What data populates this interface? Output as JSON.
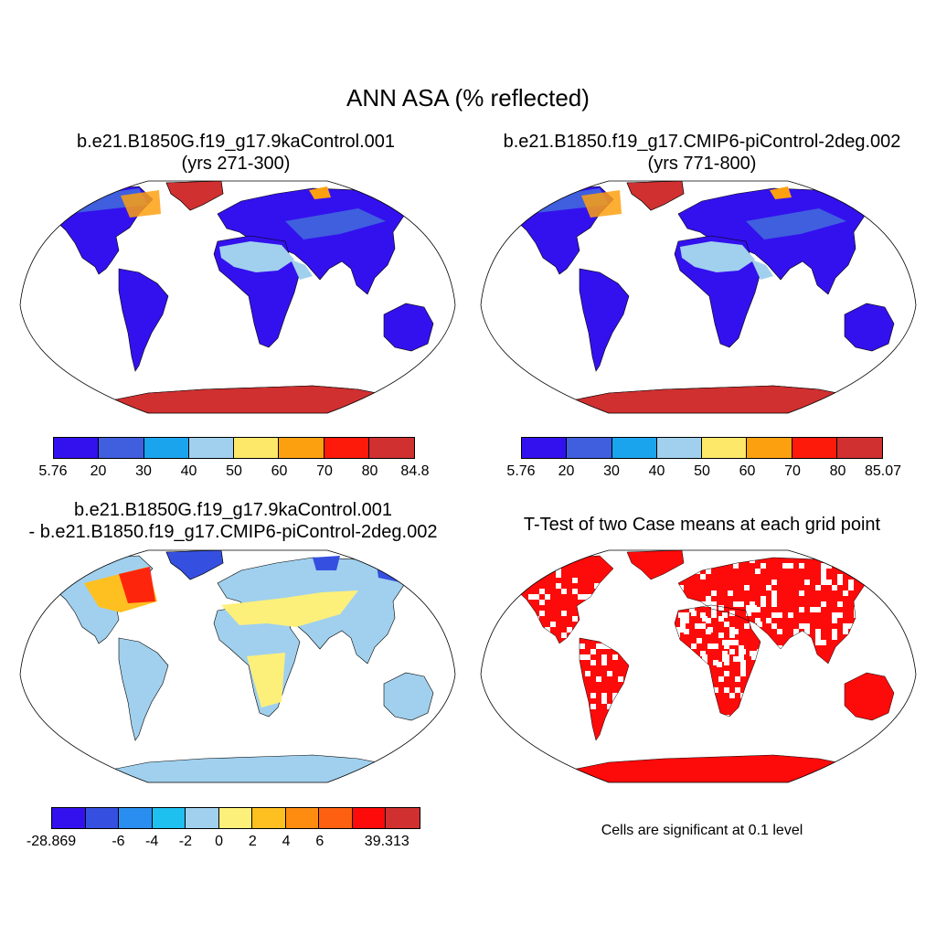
{
  "title": "ANN ASA (% reflected)",
  "panels": [
    {
      "title_line1": "b.e21.B1850G.f19_g17.9kaControl.001",
      "title_line2": "(yrs 271-300)"
    },
    {
      "title_line1": "b.e21.B1850.f19_g17.CMIP6-piControl-2deg.002",
      "title_line2": "(yrs 771-800)"
    },
    {
      "title_line1": "b.e21.B1850G.f19_g17.9kaControl.001",
      "title_line2": "- b.e21.B1850.f19_g17.CMIP6-piControl-2deg.002"
    },
    {
      "title_line1": "T-Test of two Case means at each grid point",
      "note": "Cells are significant at 0.1 level"
    }
  ],
  "colorbars": [
    {
      "labels": [
        "5.76",
        "20",
        "30",
        "40",
        "50",
        "60",
        "70",
        "80",
        "84.8"
      ],
      "colors": [
        "#3311ee",
        "#3f5fdf",
        "#1aa4ee",
        "#a0d0ee",
        "#fde86a",
        "#fda010",
        "#fd1a0a",
        "#d03030"
      ]
    },
    {
      "labels": [
        "5.76",
        "20",
        "30",
        "40",
        "50",
        "60",
        "70",
        "80",
        "85.07"
      ],
      "colors": [
        "#3311ee",
        "#3f5fdf",
        "#1aa4ee",
        "#a0d0ee",
        "#fde86a",
        "#fda010",
        "#fd1a0a",
        "#d03030"
      ]
    },
    {
      "labels": [
        "-28.869",
        "",
        "-6",
        "-4",
        "-2",
        "0",
        "2",
        "4",
        "6",
        "",
        "39.313"
      ],
      "colors": [
        "#3311ee",
        "#3550e0",
        "#2a8ef0",
        "#1ec0f0",
        "#a0d0ee",
        "#fdf07a",
        "#fdc020",
        "#fd8c10",
        "#fd6010",
        "#fd0a0a",
        "#d03030"
      ]
    }
  ],
  "map_colors": {
    "land_low": "#3311ee",
    "land_mid": "#3f5fdf",
    "desert": "#a0d0ee",
    "desert_bright": "#1aa4ee",
    "ice": "#d03030",
    "ice_edge": "#fda010",
    "diff_zero": "#a0d0ee",
    "diff_pos": "#fdf07a",
    "diff_high": "#fd0a0a",
    "diff_neg": "#3550e0",
    "significant": "#fd0a0a"
  }
}
